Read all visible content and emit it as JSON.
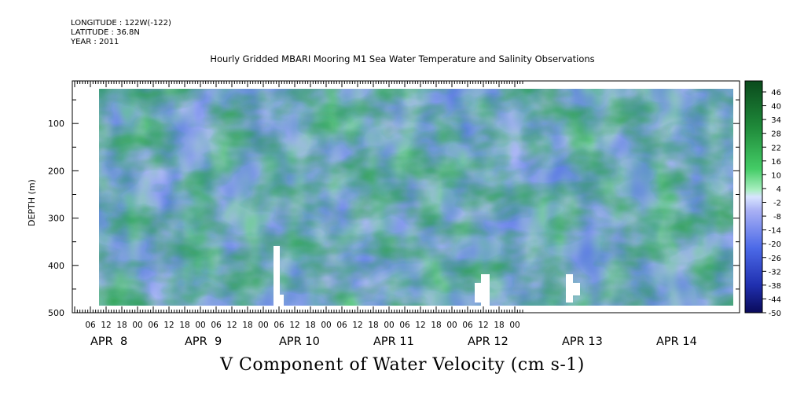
{
  "header": {
    "longitude": "LONGITUDE : 122W(-122)",
    "latitude": "LATITUDE : 36.8N",
    "year": "YEAR : 2011"
  },
  "chart_data": {
    "type": "heatmap",
    "title": "Hourly Gridded MBARI Mooring M1 Sea Water Temperature and Salinity Observations",
    "xlabel": "V Component of Water Velocity (cm s-1)",
    "ylabel": "DEPTH (m)",
    "y_ticks": [
      100,
      200,
      300,
      400,
      500
    ],
    "y_range": [
      500,
      10
    ],
    "x_tick_hours": [
      "06",
      "12",
      "18",
      "00",
      "06",
      "12",
      "18",
      "00",
      "06",
      "12",
      "18",
      "00",
      "06",
      "12",
      "18",
      "00",
      "06",
      "12",
      "18",
      "00",
      "06",
      "12",
      "18",
      "00",
      "06",
      "12",
      "18",
      "00"
    ],
    "x_day_labels": [
      "APR  8",
      "APR  9",
      "APR 10",
      "APR 11",
      "APR 12",
      "APR 13",
      "APR 14"
    ],
    "colorbar_labels": [
      "46",
      "40",
      "34",
      "28",
      "22",
      "16",
      "10",
      "4",
      "-2",
      "-8",
      "-14",
      "-20",
      "-26",
      "-32",
      "-38",
      "-44",
      "-50"
    ],
    "colorbar_range": [
      -50,
      52
    ],
    "colors": {
      "strong_negative": "#10186a",
      "negative": "#3050d8",
      "weak_negative": "#a8b0f4",
      "weak_positive": "#a8eec0",
      "positive": "#3cc05a",
      "strong_positive": "#0a4a1c"
    },
    "missing_data": "white gaps near APR 10 00h, APR 12 06h, APR 13 06h at depth ~400-480 m"
  }
}
